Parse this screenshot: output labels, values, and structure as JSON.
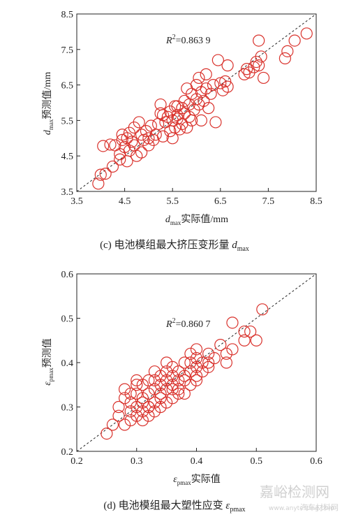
{
  "chart_data": [
    {
      "type": "scatter",
      "ylabel_var": "d",
      "ylabel_sub": "max",
      "ylabel_text": "预测值/mm",
      "xlabel_var": "d",
      "xlabel_sub": "max",
      "xlabel_text": "实际值/mm",
      "xlim": [
        3.5,
        8.5
      ],
      "ylim": [
        3.5,
        8.5
      ],
      "xticks": [
        3.5,
        4.5,
        5.5,
        6.5,
        7.5,
        8.5
      ],
      "yticks": [
        3.5,
        4.5,
        5.5,
        6.5,
        7.5,
        8.5
      ],
      "xtick_labels": [
        "3.5",
        "4.5",
        "5.5",
        "6.5",
        "7.5",
        "8.5"
      ],
      "ytick_labels": [
        "3.5",
        "4.5",
        "5.5",
        "6.5",
        "7.5",
        "8.5"
      ],
      "annotation_prefix": "R",
      "annotation_sup": "2",
      "annotation_value": "=0.863 9",
      "caption_prefix": "(c) 电池模组最大挤压变形量 ",
      "caption_var": "d",
      "caption_sub": "max",
      "marker_color": "#d9312b",
      "reference_line": "y = x",
      "points": [
        [
          3.95,
          3.72
        ],
        [
          4.0,
          3.97
        ],
        [
          4.1,
          4.0
        ],
        [
          4.05,
          4.78
        ],
        [
          4.2,
          4.82
        ],
        [
          4.25,
          4.2
        ],
        [
          4.4,
          4.4
        ],
        [
          4.4,
          4.55
        ],
        [
          4.45,
          4.95
        ],
        [
          4.45,
          5.1
        ],
        [
          4.5,
          4.75
        ],
        [
          4.55,
          4.35
        ],
        [
          4.55,
          5.0
        ],
        [
          4.6,
          4.65
        ],
        [
          4.6,
          5.15
        ],
        [
          4.65,
          4.9
        ],
        [
          4.7,
          5.3
        ],
        [
          4.7,
          4.8
        ],
        [
          4.75,
          4.5
        ],
        [
          4.8,
          5.45
        ],
        [
          4.85,
          5.1
        ],
        [
          4.85,
          4.6
        ],
        [
          4.9,
          4.95
        ],
        [
          4.95,
          5.2
        ],
        [
          5.0,
          4.8
        ],
        [
          5.0,
          5.0
        ],
        [
          5.05,
          5.35
        ],
        [
          5.1,
          4.95
        ],
        [
          5.15,
          5.1
        ],
        [
          5.2,
          5.4
        ],
        [
          5.25,
          5.7
        ],
        [
          5.25,
          5.95
        ],
        [
          5.3,
          5.05
        ],
        [
          5.35,
          5.45
        ],
        [
          5.4,
          5.6
        ],
        [
          5.45,
          5.2
        ],
        [
          5.45,
          5.75
        ],
        [
          5.5,
          5.0
        ],
        [
          5.5,
          5.5
        ],
        [
          5.55,
          5.3
        ],
        [
          5.55,
          5.9
        ],
        [
          5.6,
          5.65
        ],
        [
          5.6,
          5.55
        ],
        [
          5.65,
          5.25
        ],
        [
          5.7,
          5.85
        ],
        [
          5.7,
          5.4
        ],
        [
          5.75,
          6.05
        ],
        [
          5.75,
          5.7
        ],
        [
          5.8,
          5.3
        ],
        [
          5.8,
          6.4
        ],
        [
          5.85,
          5.95
        ],
        [
          5.85,
          5.6
        ],
        [
          5.9,
          6.25
        ],
        [
          5.95,
          5.8
        ],
        [
          6.0,
          6.1
        ],
        [
          6.0,
          6.5
        ],
        [
          6.05,
          5.95
        ],
        [
          6.05,
          6.7
        ],
        [
          6.1,
          6.3
        ],
        [
          6.1,
          5.5
        ],
        [
          6.15,
          6.05
        ],
        [
          6.2,
          6.4
        ],
        [
          6.25,
          5.85
        ],
        [
          6.3,
          6.25
        ],
        [
          6.35,
          6.5
        ],
        [
          6.45,
          7.2
        ],
        [
          6.4,
          5.45
        ],
        [
          6.55,
          6.35
        ],
        [
          6.6,
          6.6
        ],
        [
          6.65,
          6.45
        ],
        [
          6.65,
          7.05
        ],
        [
          7.0,
          6.8
        ],
        [
          7.05,
          6.95
        ],
        [
          7.1,
          6.85
        ],
        [
          7.2,
          7.0
        ],
        [
          7.25,
          7.15
        ],
        [
          7.3,
          7.05
        ],
        [
          7.35,
          7.3
        ],
        [
          7.3,
          7.75
        ],
        [
          7.4,
          6.7
        ],
        [
          7.85,
          7.25
        ],
        [
          7.9,
          7.45
        ],
        [
          8.05,
          7.75
        ],
        [
          8.3,
          7.95
        ],
        [
          6.2,
          6.8
        ],
        [
          5.9,
          5.5
        ],
        [
          5.6,
          5.9
        ],
        [
          4.3,
          4.8
        ],
        [
          5.3,
          5.65
        ],
        [
          6.5,
          6.55
        ]
      ]
    },
    {
      "type": "scatter",
      "ylabel_var": "ε",
      "ylabel_sub": "pmax",
      "ylabel_text": "预测值",
      "xlabel_var": "ε",
      "xlabel_sub": "pmax",
      "xlabel_text": "实际值",
      "xlim": [
        0.2,
        0.6
      ],
      "ylim": [
        0.2,
        0.6
      ],
      "xticks": [
        0.2,
        0.3,
        0.4,
        0.5,
        0.6
      ],
      "yticks": [
        0.2,
        0.3,
        0.4,
        0.5,
        0.6
      ],
      "xtick_labels": [
        "0.2",
        "0.3",
        "0.4",
        "0.5",
        "0.6"
      ],
      "ytick_labels": [
        "0.2",
        "0.3",
        "0.4",
        "0.5",
        "0.6"
      ],
      "annotation_prefix": "R",
      "annotation_sup": "2",
      "annotation_value": "=0.860 7",
      "caption_prefix": "(d) 电池模组最大塑性应变 ",
      "caption_var": "ε",
      "caption_sub": "pmax",
      "marker_color": "#d9312b",
      "reference_line": "y = x",
      "points": [
        [
          0.25,
          0.24
        ],
        [
          0.26,
          0.26
        ],
        [
          0.27,
          0.28
        ],
        [
          0.27,
          0.3
        ],
        [
          0.28,
          0.26
        ],
        [
          0.28,
          0.32
        ],
        [
          0.28,
          0.34
        ],
        [
          0.29,
          0.27
        ],
        [
          0.29,
          0.29
        ],
        [
          0.29,
          0.31
        ],
        [
          0.3,
          0.28
        ],
        [
          0.3,
          0.3
        ],
        [
          0.3,
          0.33
        ],
        [
          0.3,
          0.36
        ],
        [
          0.31,
          0.29
        ],
        [
          0.31,
          0.31
        ],
        [
          0.31,
          0.32
        ],
        [
          0.31,
          0.35
        ],
        [
          0.32,
          0.28
        ],
        [
          0.32,
          0.3
        ],
        [
          0.32,
          0.33
        ],
        [
          0.32,
          0.36
        ],
        [
          0.33,
          0.31
        ],
        [
          0.33,
          0.34
        ],
        [
          0.33,
          0.38
        ],
        [
          0.33,
          0.29
        ],
        [
          0.34,
          0.32
        ],
        [
          0.34,
          0.35
        ],
        [
          0.34,
          0.37
        ],
        [
          0.34,
          0.33
        ],
        [
          0.35,
          0.34
        ],
        [
          0.35,
          0.36
        ],
        [
          0.35,
          0.31
        ],
        [
          0.35,
          0.38
        ],
        [
          0.36,
          0.35
        ],
        [
          0.36,
          0.37
        ],
        [
          0.36,
          0.32
        ],
        [
          0.36,
          0.39
        ],
        [
          0.37,
          0.34
        ],
        [
          0.37,
          0.36
        ],
        [
          0.37,
          0.38
        ],
        [
          0.38,
          0.33
        ],
        [
          0.38,
          0.37
        ],
        [
          0.38,
          0.4
        ],
        [
          0.39,
          0.35
        ],
        [
          0.39,
          0.38
        ],
        [
          0.39,
          0.42
        ],
        [
          0.4,
          0.37
        ],
        [
          0.4,
          0.39
        ],
        [
          0.4,
          0.41
        ],
        [
          0.4,
          0.36
        ],
        [
          0.41,
          0.38
        ],
        [
          0.41,
          0.4
        ],
        [
          0.42,
          0.39
        ],
        [
          0.42,
          0.42
        ],
        [
          0.43,
          0.41
        ],
        [
          0.44,
          0.44
        ],
        [
          0.45,
          0.4
        ],
        [
          0.45,
          0.42
        ],
        [
          0.46,
          0.43
        ],
        [
          0.46,
          0.49
        ],
        [
          0.48,
          0.45
        ],
        [
          0.48,
          0.47
        ],
        [
          0.49,
          0.47
        ],
        [
          0.5,
          0.45
        ],
        [
          0.51,
          0.52
        ],
        [
          0.3,
          0.35
        ],
        [
          0.32,
          0.3
        ],
        [
          0.35,
          0.4
        ],
        [
          0.38,
          0.36
        ],
        [
          0.42,
          0.4
        ],
        [
          0.29,
          0.33
        ],
        [
          0.33,
          0.36
        ],
        [
          0.36,
          0.34
        ],
        [
          0.39,
          0.4
        ],
        [
          0.31,
          0.27
        ],
        [
          0.34,
          0.3
        ],
        [
          0.37,
          0.33
        ],
        [
          0.4,
          0.43
        ]
      ]
    }
  ],
  "watermark": {
    "main": "嘉峪检测网",
    "sub": "www.anytesting.com",
    "sub2": "汽车材料网"
  }
}
